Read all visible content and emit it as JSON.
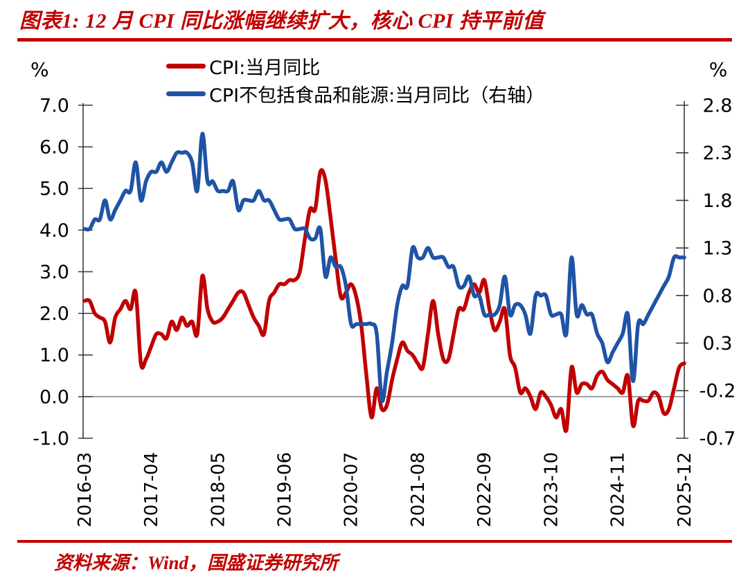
{
  "title": "图表1:  12 月 CPI 同比涨幅继续扩大，核心 CPI 持平前值",
  "source": "资料来源：Wind，国盛证券研究所",
  "accent_color": "#C00000",
  "legend": [
    {
      "label": "CPI:当月同比",
      "color": "#C00000"
    },
    {
      "label": "CPI不包括食品和能源:当月同比（右轴）",
      "color": "#1F53A5"
    }
  ],
  "chart_data": {
    "type": "line",
    "x_monthly_range": [
      "2016-03",
      "2025-12"
    ],
    "x_tick_labels": [
      "2016-03",
      "2017-04",
      "2018-05",
      "2019-06",
      "2020-07",
      "2021-08",
      "2022-09",
      "2023-10",
      "2024-11",
      "2025-12"
    ],
    "left_axis": {
      "unit": "%",
      "min": -1.0,
      "max": 7.0,
      "tick_labels": [
        "7.0",
        "6.0",
        "5.0",
        "4.0",
        "3.0",
        "2.0",
        "1.0",
        "0.0",
        "-1.0"
      ]
    },
    "right_axis": {
      "unit": "%",
      "min": -0.7,
      "max": 2.8,
      "tick_labels": [
        "2.8",
        "2.3",
        "1.8",
        "1.3",
        "0.8",
        "0.3",
        "-0.2",
        "-0.7"
      ]
    },
    "zero_line": {
      "axis": "left",
      "value": 0.0,
      "color": "#808080"
    },
    "series": [
      {
        "name": "CPI:当月同比",
        "axis": "left",
        "color": "#C00000",
        "values": [
          2.3,
          2.3,
          2.0,
          1.9,
          1.8,
          1.3,
          1.9,
          2.1,
          2.3,
          2.1,
          2.5,
          0.8,
          0.9,
          1.2,
          1.5,
          1.5,
          1.4,
          1.8,
          1.6,
          1.9,
          1.7,
          1.8,
          1.5,
          2.9,
          2.1,
          1.8,
          1.8,
          1.9,
          2.1,
          2.3,
          2.5,
          2.5,
          2.2,
          1.9,
          1.7,
          1.5,
          2.3,
          2.5,
          2.7,
          2.7,
          2.8,
          2.8,
          3.0,
          3.8,
          4.5,
          4.5,
          5.4,
          5.2,
          4.3,
          3.3,
          2.4,
          2.5,
          2.7,
          2.4,
          1.7,
          0.5,
          -0.5,
          0.2,
          -0.3,
          -0.2,
          0.4,
          0.9,
          1.3,
          1.1,
          1.0,
          0.8,
          0.7,
          1.5,
          2.3,
          1.5,
          0.9,
          0.9,
          1.5,
          2.1,
          2.1,
          2.5,
          2.7,
          2.5,
          2.8,
          2.1,
          1.6,
          1.8,
          2.1,
          1.0,
          0.7,
          0.1,
          0.2,
          0.0,
          -0.3,
          0.1,
          0.0,
          -0.2,
          -0.5,
          -0.3,
          -0.8,
          0.7,
          0.1,
          0.3,
          0.3,
          0.2,
          0.5,
          0.6,
          0.4,
          0.3,
          0.2,
          0.1,
          0.5,
          -0.7,
          -0.1,
          -0.1,
          -0.1,
          0.1,
          0.0,
          -0.4,
          -0.3,
          0.2,
          0.7,
          0.8
        ]
      },
      {
        "name": "CPI不包括食品和能源:当月同比（右轴）",
        "axis": "right",
        "color": "#1F53A5",
        "values": [
          1.5,
          1.5,
          1.6,
          1.6,
          1.8,
          1.6,
          1.7,
          1.8,
          1.9,
          1.9,
          2.2,
          1.8,
          2.0,
          2.1,
          2.1,
          2.2,
          2.1,
          2.2,
          2.3,
          2.3,
          2.3,
          2.2,
          1.9,
          2.5,
          2.0,
          2.0,
          1.9,
          1.9,
          1.9,
          2.0,
          1.7,
          1.8,
          1.8,
          1.8,
          1.9,
          1.8,
          1.8,
          1.7,
          1.6,
          1.6,
          1.6,
          1.5,
          1.5,
          1.5,
          1.4,
          1.4,
          1.5,
          1.0,
          1.2,
          1.1,
          1.1,
          0.9,
          0.5,
          0.5,
          0.5,
          0.5,
          0.5,
          0.4,
          -0.3,
          0.0,
          0.3,
          0.7,
          0.9,
          0.9,
          1.3,
          1.2,
          1.2,
          1.3,
          1.2,
          1.2,
          1.2,
          1.1,
          1.1,
          0.9,
          0.9,
          1.0,
          0.8,
          0.8,
          0.6,
          0.6,
          0.6,
          0.7,
          1.0,
          0.6,
          0.7,
          0.7,
          0.6,
          0.4,
          0.8,
          0.8,
          0.8,
          0.6,
          0.6,
          0.6,
          0.4,
          1.2,
          0.6,
          0.7,
          0.6,
          0.6,
          0.4,
          0.3,
          0.1,
          0.2,
          0.3,
          0.4,
          0.6,
          -0.1,
          0.5,
          0.5,
          0.6,
          0.7,
          0.8,
          0.9,
          1.0,
          1.2,
          1.2,
          1.2
        ]
      }
    ]
  }
}
